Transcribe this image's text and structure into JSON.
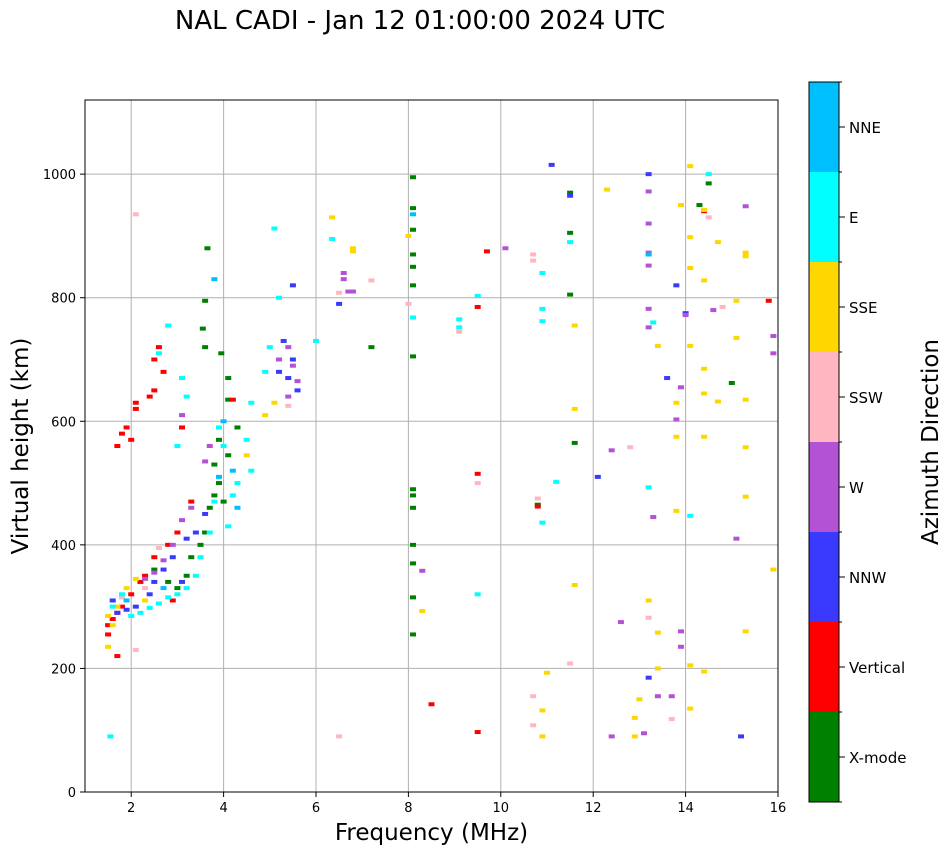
{
  "chart_data": {
    "type": "scatter",
    "title": "NAL CADI - Jan 12 01:00:00 2024 UTC",
    "xlabel": "Frequency (MHz)",
    "ylabel": "Virtual height (km)",
    "xlim": [
      1,
      16
    ],
    "ylim": [
      0,
      1120
    ],
    "xticks": [
      2,
      4,
      6,
      8,
      10,
      12,
      14,
      16
    ],
    "yticks": [
      0,
      200,
      400,
      600,
      800,
      1000
    ],
    "grid": true,
    "colorbar": {
      "label": "Azimuth Direction",
      "categories": [
        {
          "name": "X-mode",
          "color": "#008000"
        },
        {
          "name": "Vertical",
          "color": "#ff0000"
        },
        {
          "name": "NNW",
          "color": "#3a3aff"
        },
        {
          "name": "W",
          "color": "#b452d6"
        },
        {
          "name": "SSW",
          "color": "#ffb6c1"
        },
        {
          "name": "SSE",
          "color": "#ffd700"
        },
        {
          "name": "E",
          "color": "#00ffff"
        },
        {
          "name": "NNE",
          "color": "#00bfff"
        }
      ]
    },
    "series": [
      {
        "name": "X-mode",
        "points": [
          [
            3.65,
            880
          ],
          [
            3.6,
            795
          ],
          [
            3.55,
            750
          ],
          [
            3.6,
            720
          ],
          [
            3.95,
            710
          ],
          [
            4.1,
            670
          ],
          [
            4.1,
            635
          ],
          [
            3.9,
            570
          ],
          [
            3.8,
            530
          ],
          [
            3.9,
            500
          ],
          [
            4.0,
            470
          ],
          [
            3.7,
            460
          ],
          [
            3.6,
            420
          ],
          [
            3.5,
            400
          ],
          [
            3.3,
            380
          ],
          [
            3.2,
            350
          ],
          [
            3.0,
            330
          ],
          [
            8.1,
            995
          ],
          [
            8.1,
            945
          ],
          [
            8.1,
            910
          ],
          [
            8.1,
            870
          ],
          [
            8.1,
            850
          ],
          [
            8.1,
            820
          ],
          [
            8.1,
            705
          ],
          [
            8.1,
            490
          ],
          [
            8.1,
            480
          ],
          [
            8.1,
            460
          ],
          [
            8.1,
            400
          ],
          [
            8.1,
            370
          ],
          [
            8.1,
            315
          ],
          [
            8.1,
            255
          ],
          [
            7.2,
            720
          ],
          [
            11.5,
            970
          ],
          [
            11.5,
            905
          ],
          [
            11.5,
            805
          ],
          [
            11.6,
            565
          ],
          [
            10.8,
            465
          ],
          [
            14.5,
            985
          ],
          [
            15.0,
            662
          ],
          [
            14.3,
            950
          ],
          [
            4.3,
            590
          ],
          [
            4.1,
            545
          ],
          [
            3.8,
            480
          ],
          [
            2.5,
            360
          ],
          [
            2.8,
            340
          ]
        ]
      },
      {
        "name": "Vertical",
        "points": [
          [
            2.1,
            630
          ],
          [
            2.1,
            620
          ],
          [
            1.9,
            590
          ],
          [
            1.8,
            580
          ],
          [
            2.0,
            570
          ],
          [
            1.7,
            560
          ],
          [
            2.4,
            640
          ],
          [
            2.6,
            720
          ],
          [
            2.5,
            700
          ],
          [
            2.7,
            680
          ],
          [
            2.5,
            650
          ],
          [
            3.1,
            590
          ],
          [
            3.3,
            470
          ],
          [
            3.0,
            420
          ],
          [
            2.8,
            400
          ],
          [
            2.5,
            380
          ],
          [
            2.3,
            350
          ],
          [
            2.2,
            340
          ],
          [
            2.0,
            320
          ],
          [
            1.8,
            300
          ],
          [
            1.7,
            290
          ],
          [
            1.6,
            280
          ],
          [
            1.5,
            270
          ],
          [
            1.5,
            255
          ],
          [
            1.7,
            220
          ],
          [
            4.2,
            635
          ],
          [
            8.5,
            142
          ],
          [
            9.5,
            515
          ],
          [
            9.5,
            785
          ],
          [
            9.7,
            875
          ],
          [
            9.5,
            97
          ],
          [
            15.8,
            795
          ],
          [
            10.8,
            462
          ],
          [
            14.4,
            940
          ],
          [
            2.9,
            310
          ]
        ]
      },
      {
        "name": "NNW",
        "points": [
          [
            5.3,
            730
          ],
          [
            5.5,
            700
          ],
          [
            5.4,
            670
          ],
          [
            5.6,
            650
          ],
          [
            5.2,
            680
          ],
          [
            5.5,
            820
          ],
          [
            3.6,
            450
          ],
          [
            3.4,
            420
          ],
          [
            3.2,
            410
          ],
          [
            2.9,
            380
          ],
          [
            2.7,
            360
          ],
          [
            2.5,
            340
          ],
          [
            2.4,
            320
          ],
          [
            2.1,
            300
          ],
          [
            1.9,
            295
          ],
          [
            1.7,
            290
          ],
          [
            1.6,
            310
          ],
          [
            11.1,
            1015
          ],
          [
            11.5,
            965
          ],
          [
            13.2,
            1000
          ],
          [
            13.8,
            820
          ],
          [
            14.0,
            775
          ],
          [
            13.6,
            670
          ],
          [
            12.1,
            510
          ],
          [
            13.2,
            185
          ],
          [
            15.2,
            90
          ],
          [
            6.5,
            790
          ],
          [
            3.1,
            340
          ]
        ]
      },
      {
        "name": "W",
        "points": [
          [
            5.4,
            720
          ],
          [
            5.2,
            700
          ],
          [
            5.5,
            690
          ],
          [
            5.6,
            665
          ],
          [
            5.4,
            640
          ],
          [
            3.7,
            560
          ],
          [
            3.6,
            535
          ],
          [
            3.3,
            460
          ],
          [
            3.1,
            440
          ],
          [
            2.9,
            400
          ],
          [
            2.7,
            375
          ],
          [
            2.5,
            355
          ],
          [
            2.3,
            345
          ],
          [
            6.6,
            840
          ],
          [
            6.6,
            830
          ],
          [
            6.8,
            810
          ],
          [
            6.7,
            810
          ],
          [
            10.1,
            880
          ],
          [
            13.2,
            972
          ],
          [
            13.2,
            920
          ],
          [
            13.2,
            852
          ],
          [
            13.2,
            782
          ],
          [
            13.2,
            752
          ],
          [
            13.3,
            445
          ],
          [
            13.4,
            155
          ],
          [
            13.7,
            155
          ],
          [
            13.9,
            655
          ],
          [
            14.0,
            772
          ],
          [
            14.6,
            780
          ],
          [
            15.3,
            948
          ],
          [
            15.9,
            738
          ],
          [
            15.9,
            710
          ],
          [
            12.4,
            553
          ],
          [
            12.6,
            275
          ],
          [
            12.4,
            90
          ],
          [
            13.1,
            95
          ],
          [
            13.2,
            873
          ],
          [
            15.1,
            410
          ],
          [
            13.8,
            603
          ],
          [
            13.9,
            260
          ],
          [
            13.9,
            235
          ],
          [
            8.3,
            358
          ],
          [
            3.1,
            610
          ]
        ]
      },
      {
        "name": "SSW",
        "points": [
          [
            2.1,
            935
          ],
          [
            6.5,
            90
          ],
          [
            7.2,
            828
          ],
          [
            6.5,
            808
          ],
          [
            9.1,
            745
          ],
          [
            10.7,
            870
          ],
          [
            10.7,
            860
          ],
          [
            10.8,
            475
          ],
          [
            10.7,
            155
          ],
          [
            10.7,
            108
          ],
          [
            11.5,
            208
          ],
          [
            12.8,
            558
          ],
          [
            13.2,
            282
          ],
          [
            13.7,
            118
          ],
          [
            14.5,
            930
          ],
          [
            14.8,
            785
          ],
          [
            9.5,
            500
          ],
          [
            8.0,
            790
          ],
          [
            2.1,
            230
          ],
          [
            1.8,
            315
          ],
          [
            2.3,
            330
          ],
          [
            2.6,
            395
          ],
          [
            5.4,
            625
          ]
        ]
      },
      {
        "name": "SSE",
        "points": [
          [
            6.35,
            930
          ],
          [
            6.8,
            880
          ],
          [
            6.8,
            875
          ],
          [
            8.0,
            900
          ],
          [
            8.3,
            293
          ],
          [
            11.6,
            755
          ],
          [
            11.6,
            620
          ],
          [
            11.6,
            335
          ],
          [
            11.0,
            193
          ],
          [
            10.9,
            132
          ],
          [
            10.9,
            90
          ],
          [
            12.3,
            975
          ],
          [
            13.9,
            950
          ],
          [
            13.4,
            722
          ],
          [
            13.8,
            630
          ],
          [
            13.8,
            575
          ],
          [
            13.8,
            455
          ],
          [
            13.2,
            310
          ],
          [
            13.4,
            258
          ],
          [
            13.4,
            200
          ],
          [
            13.0,
            150
          ],
          [
            12.9,
            120
          ],
          [
            12.9,
            90
          ],
          [
            14.1,
            1013
          ],
          [
            14.1,
            898
          ],
          [
            14.1,
            848
          ],
          [
            14.1,
            722
          ],
          [
            14.1,
            205
          ],
          [
            14.1,
            135
          ],
          [
            14.4,
            942
          ],
          [
            14.4,
            828
          ],
          [
            14.4,
            685
          ],
          [
            14.4,
            645
          ],
          [
            14.4,
            575
          ],
          [
            14.4,
            195
          ],
          [
            14.7,
            890
          ],
          [
            14.7,
            632
          ],
          [
            15.1,
            795
          ],
          [
            15.1,
            735
          ],
          [
            15.3,
            873
          ],
          [
            15.3,
            867
          ],
          [
            15.3,
            635
          ],
          [
            15.3,
            558
          ],
          [
            15.3,
            478
          ],
          [
            15.3,
            260
          ],
          [
            15.9,
            360
          ],
          [
            4.9,
            610
          ],
          [
            5.1,
            630
          ],
          [
            4.5,
            545
          ],
          [
            1.6,
            270
          ],
          [
            1.5,
            285
          ],
          [
            1.7,
            300
          ],
          [
            1.9,
            330
          ],
          [
            2.1,
            345
          ],
          [
            2.3,
            310
          ],
          [
            1.5,
            235
          ]
        ]
      },
      {
        "name": "E",
        "points": [
          [
            1.55,
            90
          ],
          [
            5.1,
            912
          ],
          [
            5.2,
            800
          ],
          [
            5.0,
            720
          ],
          [
            4.9,
            680
          ],
          [
            4.6,
            630
          ],
          [
            4.5,
            570
          ],
          [
            4.6,
            520
          ],
          [
            4.3,
            500
          ],
          [
            4.2,
            480
          ],
          [
            4.1,
            430
          ],
          [
            3.9,
            590
          ],
          [
            4.0,
            560
          ],
          [
            3.8,
            470
          ],
          [
            3.7,
            420
          ],
          [
            3.5,
            380
          ],
          [
            3.4,
            350
          ],
          [
            3.2,
            330
          ],
          [
            3.0,
            320
          ],
          [
            2.8,
            315
          ],
          [
            2.6,
            305
          ],
          [
            2.4,
            298
          ],
          [
            2.2,
            290
          ],
          [
            2.0,
            285
          ],
          [
            1.8,
            320
          ],
          [
            2.6,
            710
          ],
          [
            2.8,
            755
          ],
          [
            3.1,
            670
          ],
          [
            3.2,
            640
          ],
          [
            3.0,
            560
          ],
          [
            6.0,
            730
          ],
          [
            6.35,
            895
          ],
          [
            8.1,
            768
          ],
          [
            9.1,
            765
          ],
          [
            9.1,
            752
          ],
          [
            9.5,
            803
          ],
          [
            9.5,
            320
          ],
          [
            10.9,
            840
          ],
          [
            10.9,
            782
          ],
          [
            10.9,
            762
          ],
          [
            10.9,
            436
          ],
          [
            11.2,
            502
          ],
          [
            11.5,
            890
          ],
          [
            13.2,
            493
          ],
          [
            14.1,
            447
          ],
          [
            14.5,
            1000
          ],
          [
            13.3,
            760
          ],
          [
            1.6,
            300
          ]
        ]
      },
      {
        "name": "NNE",
        "points": [
          [
            3.8,
            830
          ],
          [
            4.0,
            600
          ],
          [
            4.2,
            520
          ],
          [
            3.9,
            510
          ],
          [
            4.3,
            460
          ],
          [
            2.7,
            330
          ],
          [
            1.9,
            310
          ],
          [
            8.1,
            935
          ],
          [
            13.2,
            870
          ]
        ]
      }
    ]
  }
}
